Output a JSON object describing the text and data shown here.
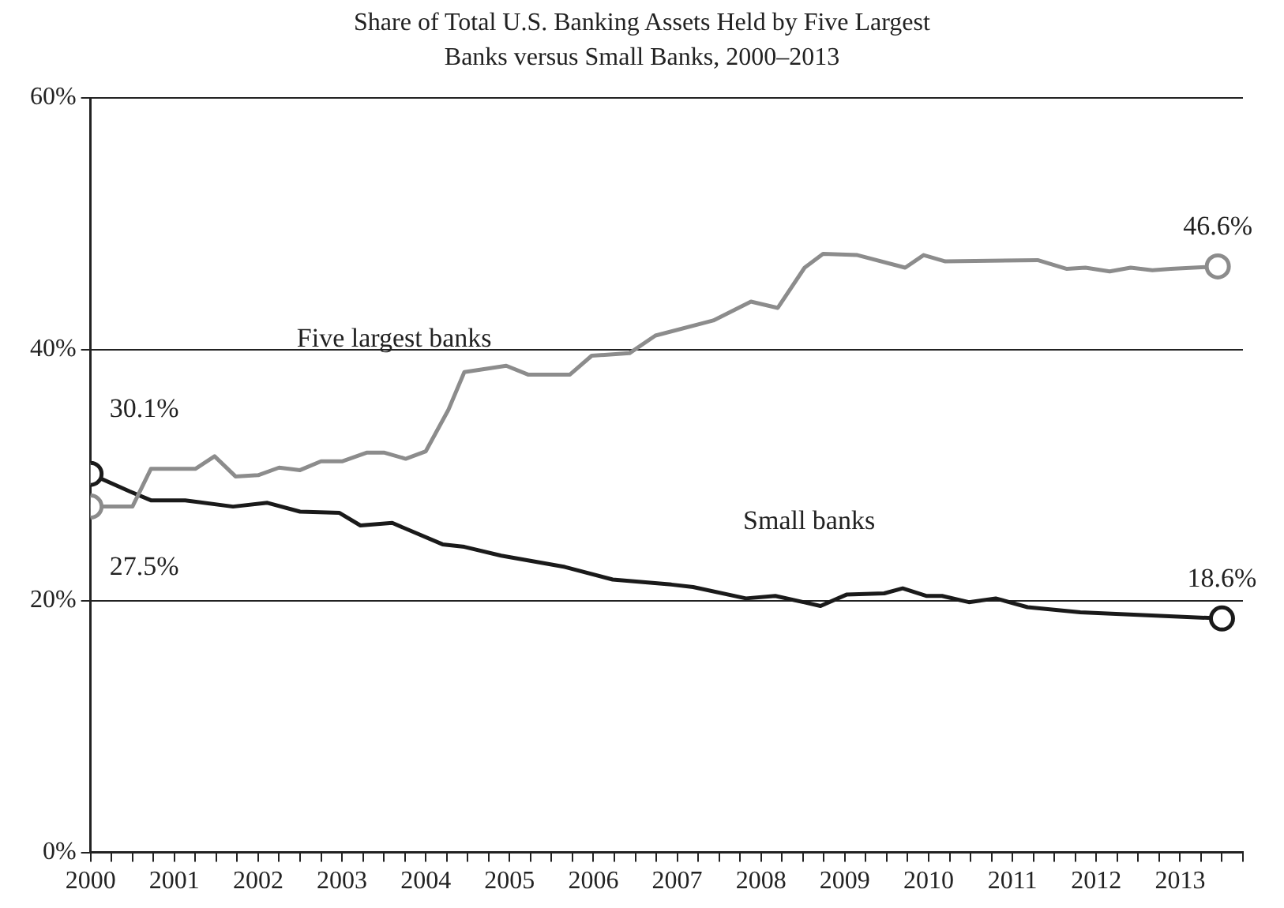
{
  "chart_data": {
    "type": "line",
    "title": "Share of Total U.S. Banking Assets Held by Five Largest Banks versus Small Banks, 2000–2013",
    "series": [
      {
        "name": "Five largest banks",
        "color": "#8c8c8c",
        "x": [
          2000,
          2000.5,
          2000.72,
          2001.25,
          2001.48,
          2001.73,
          2002.0,
          2002.25,
          2002.5,
          2002.75,
          2003.0,
          2003.3,
          2003.5,
          2003.76,
          2004.0,
          2004.27,
          2004.46,
          2004.96,
          2005.22,
          2005.72,
          2005.98,
          2006.43,
          2006.74,
          2007.43,
          2007.88,
          2008.2,
          2008.52,
          2008.74,
          2009.15,
          2009.72,
          2009.94,
          2010.2,
          2011.3,
          2011.65,
          2011.87,
          2012.16,
          2012.41,
          2012.67,
          2012.89,
          2013.45
        ],
        "values": [
          27.5,
          27.5,
          30.5,
          30.5,
          31.5,
          29.9,
          30.0,
          30.6,
          30.4,
          31.1,
          31.1,
          31.8,
          31.8,
          31.3,
          31.9,
          35.2,
          38.2,
          38.7,
          38.0,
          38.0,
          39.5,
          39.7,
          41.1,
          42.3,
          43.8,
          43.3,
          46.5,
          47.6,
          47.5,
          46.5,
          47.5,
          47.0,
          47.1,
          46.4,
          46.5,
          46.2,
          46.5,
          46.3,
          46.4,
          46.6
        ],
        "value_labels": [
          "27.5%",
          null,
          null,
          null,
          null,
          null,
          null,
          null,
          null,
          null,
          null,
          null,
          null,
          null,
          null,
          null,
          null,
          null,
          null,
          null,
          null,
          null,
          null,
          null,
          null,
          null,
          null,
          null,
          null,
          null,
          null,
          null,
          null,
          null,
          null,
          null,
          null,
          null,
          null,
          "46.6%"
        ]
      },
      {
        "name": "Small banks",
        "color": "#1a1a1a",
        "x": [
          2000,
          2000.47,
          2000.72,
          2001.13,
          2001.7,
          2002.11,
          2002.5,
          2002.97,
          2003.22,
          2003.6,
          2004.2,
          2004.46,
          2004.9,
          2005.66,
          2006.23,
          2006.93,
          2007.19,
          2007.82,
          2008.17,
          2008.71,
          2009.02,
          2009.47,
          2009.69,
          2009.97,
          2010.16,
          2010.48,
          2010.8,
          2011.18,
          2011.81,
          2013.5
        ],
        "values": [
          30.1,
          28.7,
          28.0,
          28.0,
          27.5,
          27.8,
          27.1,
          27.0,
          26.0,
          26.2,
          24.5,
          24.3,
          23.6,
          22.7,
          21.7,
          21.3,
          21.1,
          20.2,
          20.4,
          19.6,
          20.5,
          20.6,
          21.0,
          20.4,
          20.4,
          19.9,
          20.2,
          19.5,
          19.1,
          18.6
        ],
        "value_labels": [
          "30.1%",
          null,
          null,
          null,
          null,
          null,
          null,
          null,
          null,
          null,
          null,
          null,
          null,
          null,
          null,
          null,
          null,
          null,
          null,
          null,
          null,
          null,
          null,
          null,
          null,
          null,
          null,
          null,
          null,
          "18.6%"
        ]
      }
    ],
    "xlim": [
      2000,
      2013.75
    ],
    "xticks": [
      2000,
      {
        "value": 2000.25,
        "label": null
      },
      {
        "value": 2000.5,
        "label": null
      },
      {
        "value": 2000.75,
        "label": null
      },
      2001,
      {
        "value": 2001.25,
        "label": null
      },
      {
        "value": 2001.5,
        "label": null
      },
      {
        "value": 2001.75,
        "label": null
      },
      2002,
      {
        "value": 2002.25,
        "label": null
      },
      {
        "value": 2002.5,
        "label": null
      },
      {
        "value": 2002.75,
        "label": null
      },
      2003,
      {
        "value": 2003.25,
        "label": null
      },
      {
        "value": 2003.5,
        "label": null
      },
      {
        "value": 2003.75,
        "label": null
      },
      2004,
      {
        "value": 2004.25,
        "label": null
      },
      {
        "value": 2004.5,
        "label": null
      },
      {
        "value": 2004.75,
        "label": null
      },
      2005,
      {
        "value": 2005.25,
        "label": null
      },
      {
        "value": 2005.5,
        "label": null
      },
      {
        "value": 2005.75,
        "label": null
      },
      2006,
      {
        "value": 2006.25,
        "label": null
      },
      {
        "value": 2006.5,
        "label": null
      },
      {
        "value": 2006.75,
        "label": null
      },
      2007,
      {
        "value": 2007.25,
        "label": null
      },
      {
        "value": 2007.5,
        "label": null
      },
      {
        "value": 2007.75,
        "label": null
      },
      2008,
      {
        "value": 2008.25,
        "label": null
      },
      {
        "value": 2008.5,
        "label": null
      },
      {
        "value": 2008.75,
        "label": null
      },
      2009,
      {
        "value": 2009.25,
        "label": null
      },
      {
        "value": 2009.5,
        "label": null
      },
      {
        "value": 2009.75,
        "label": null
      },
      2010,
      {
        "value": 2010.25,
        "label": null
      },
      {
        "value": 2010.5,
        "label": null
      },
      {
        "value": 2010.75,
        "label": null
      },
      2011,
      {
        "value": 2011.25,
        "label": null
      },
      {
        "value": 2011.5,
        "label": null
      },
      {
        "value": 2011.75,
        "label": null
      },
      2012,
      {
        "value": 2012.25,
        "label": null
      },
      {
        "value": 2012.5,
        "label": null
      },
      {
        "value": 2012.75,
        "label": null
      },
      2013,
      {
        "value": 2013.25,
        "label": null
      },
      {
        "value": 2013.5,
        "label": null
      },
      {
        "value": 2013.75,
        "label": null
      }
    ],
    "ylim": [
      0,
      60
    ],
    "yticks": [
      {
        "value": 0,
        "label": "0%"
      },
      {
        "value": 20,
        "label": "20%"
      },
      {
        "value": 40,
        "label": "40%"
      },
      {
        "value": 60,
        "label": "60%"
      }
    ],
    "grid": "y",
    "legend": false,
    "line_style": "solid"
  }
}
